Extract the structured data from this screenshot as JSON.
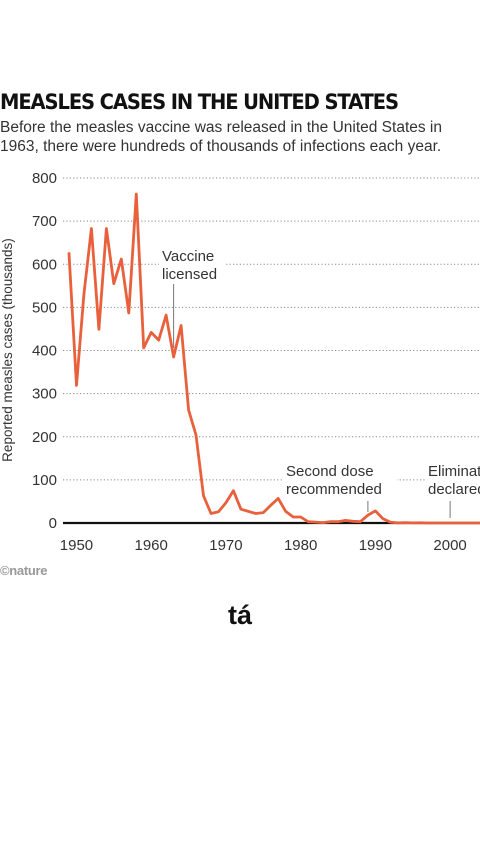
{
  "header": {
    "title": "MEASLES CASES IN THE UNITED STATES",
    "subtitle": "Before the measles vaccine was released in the United States in 1963, there were hundreds of thousands of infections each year."
  },
  "footer": {
    "logo": "©nature"
  },
  "caption": {
    "text": "tá"
  },
  "chart_data": {
    "type": "line",
    "title": "MEASLES CASES IN THE UNITED STATES",
    "subtitle": "Before the measles vaccine was released in the United States in 1963, there were hundreds of thousands of infections each year.",
    "xlabel": "",
    "ylabel": "Reported measles cases (thousands)",
    "xlim": [
      1949,
      2004
    ],
    "ylim": [
      0,
      800
    ],
    "x_ticks": [
      1950,
      1960,
      1970,
      1980,
      1990,
      2000
    ],
    "y_ticks": [
      0,
      100,
      200,
      300,
      400,
      500,
      600,
      700,
      800
    ],
    "grid": true,
    "grid_style": "dotted horizontal",
    "line_color": "#e8603c",
    "series": [
      {
        "x": [
          1949,
          1950,
          1951,
          1952,
          1953,
          1954,
          1955,
          1956,
          1957,
          1958,
          1959,
          1960,
          1961,
          1962,
          1963,
          1964,
          1965,
          1966,
          1967,
          1968,
          1969,
          1970,
          1971,
          1972,
          1973,
          1974,
          1975,
          1976,
          1977,
          1978,
          1979,
          1980,
          1981,
          1982,
          1983,
          1984,
          1985,
          1986,
          1987,
          1988,
          1989,
          1990,
          1991,
          1992,
          1993,
          1994,
          1995,
          1996,
          1997,
          1998,
          1999,
          2000,
          2001,
          2002,
          2003,
          2004
        ],
        "values": [
          625,
          319,
          530,
          683,
          449,
          683,
          555,
          612,
          487,
          763,
          406,
          442,
          424,
          482,
          385,
          458,
          262,
          204,
          63,
          22,
          26,
          47,
          75,
          32,
          27,
          22,
          24,
          41,
          57,
          27,
          14,
          14,
          3,
          2,
          1,
          3,
          3,
          6,
          4,
          3,
          18,
          28,
          10,
          2,
          0.3,
          1,
          0.3,
          0.5,
          0.1,
          0.1,
          0.1,
          0.1,
          0.1,
          0.04,
          0.06,
          0.04
        ]
      }
    ],
    "annotations": [
      {
        "lines": [
          "Vaccine",
          "licensed"
        ],
        "x": 1963,
        "y": 265
      },
      {
        "lines": [
          "Second dose",
          "recommended"
        ],
        "x": 1989,
        "y": 38
      },
      {
        "lines": [
          "Elimination",
          "declared"
        ],
        "x": 2000,
        "y": 38
      }
    ]
  }
}
